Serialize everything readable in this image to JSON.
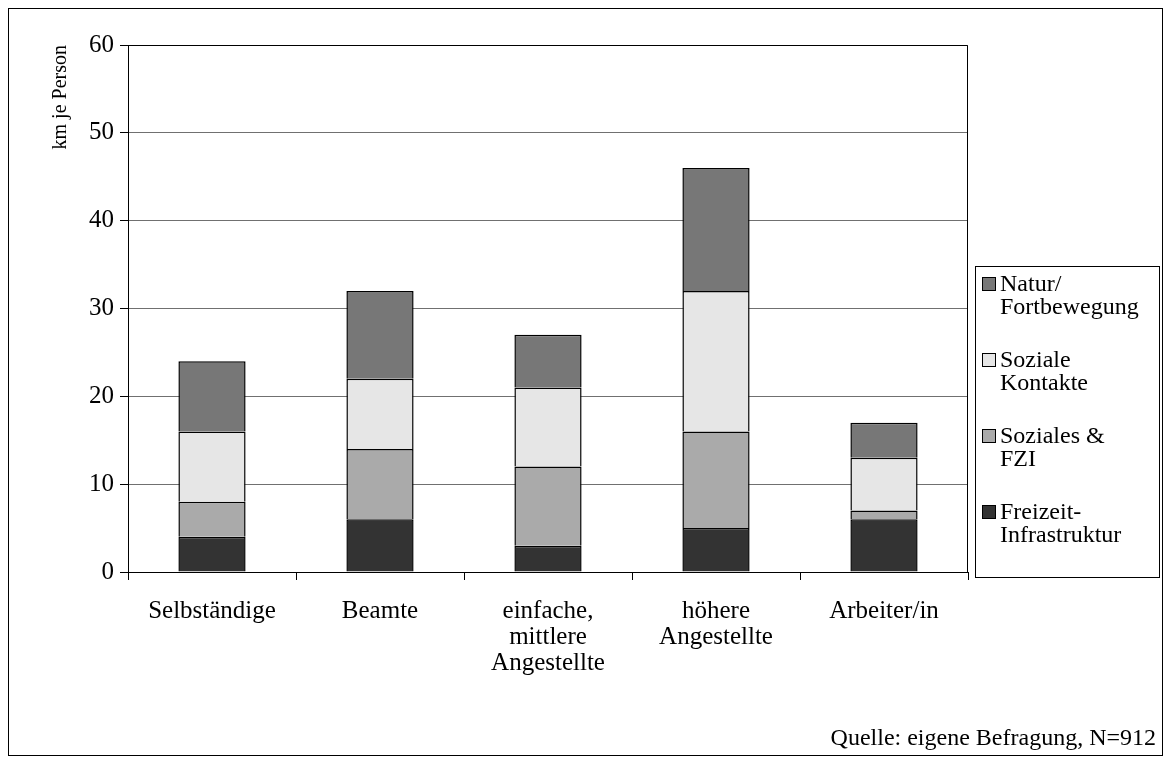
{
  "chart_data": {
    "type": "bar",
    "stacked": true,
    "ylabel": "km je Person",
    "categories": [
      "Selbständige",
      "Beamte",
      "einfache, mittlere Angestellte",
      "höhere Angestellte",
      "Arbeiter/in"
    ],
    "series": [
      {
        "name": "Freizeit-Infrastruktur",
        "color": "#333333",
        "values": [
          4,
          6,
          3,
          5,
          6
        ]
      },
      {
        "name": "Soziales & FZI",
        "color": "#aaaaaa",
        "values": [
          4,
          8,
          9,
          11,
          1
        ]
      },
      {
        "name": "Soziale Kontakte",
        "color": "#e6e6e6",
        "values": [
          8,
          8,
          9,
          16,
          6
        ]
      },
      {
        "name": "Natur/Fortbewegung",
        "color": "#777777",
        "values": [
          8,
          10,
          6,
          14,
          4
        ]
      }
    ],
    "ylim": [
      0,
      60
    ],
    "yticks": [
      0,
      10,
      20,
      30,
      40,
      50,
      60
    ],
    "grid": "y",
    "legend": "right",
    "annotations": [
      "Quelle: eigene Befragung, N=912"
    ]
  }
}
